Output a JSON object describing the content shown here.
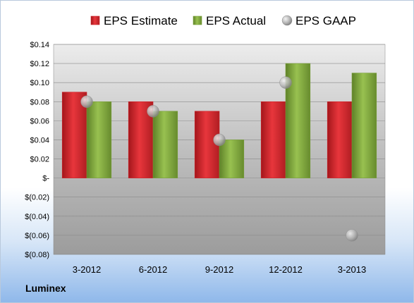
{
  "company": "Luminex",
  "colors": {
    "estimate": "#cc2228",
    "actual": "#79a03a",
    "gaap": "#9a9a9a"
  },
  "chart_data": {
    "type": "bar",
    "categories": [
      "3-2012",
      "6-2012",
      "9-2012",
      "12-2012",
      "3-2013"
    ],
    "series": [
      {
        "name": "EPS Estimate",
        "type": "bar",
        "values": [
          0.09,
          0.08,
          0.07,
          0.08,
          0.08
        ]
      },
      {
        "name": "EPS Actual",
        "type": "bar",
        "values": [
          0.08,
          0.07,
          0.04,
          0.12,
          0.11
        ]
      },
      {
        "name": "EPS GAAP",
        "type": "scatter",
        "values": [
          0.08,
          0.07,
          0.04,
          0.1,
          -0.06
        ]
      }
    ],
    "ylim": [
      -0.08,
      0.14
    ],
    "yticks": [
      0.14,
      0.12,
      0.1,
      0.08,
      0.06,
      0.04,
      0.02,
      0,
      -0.02,
      -0.04,
      -0.06,
      -0.08
    ],
    "ytick_labels": [
      "$0.14",
      "$0.12",
      "$0.10",
      "$0.08",
      "$0.06",
      "$0.04",
      "$0.02",
      "$-",
      "$(0.02)",
      "$(0.04)",
      "$(0.06)",
      "$(0.08)"
    ],
    "legend_position": "top",
    "grid": true
  }
}
